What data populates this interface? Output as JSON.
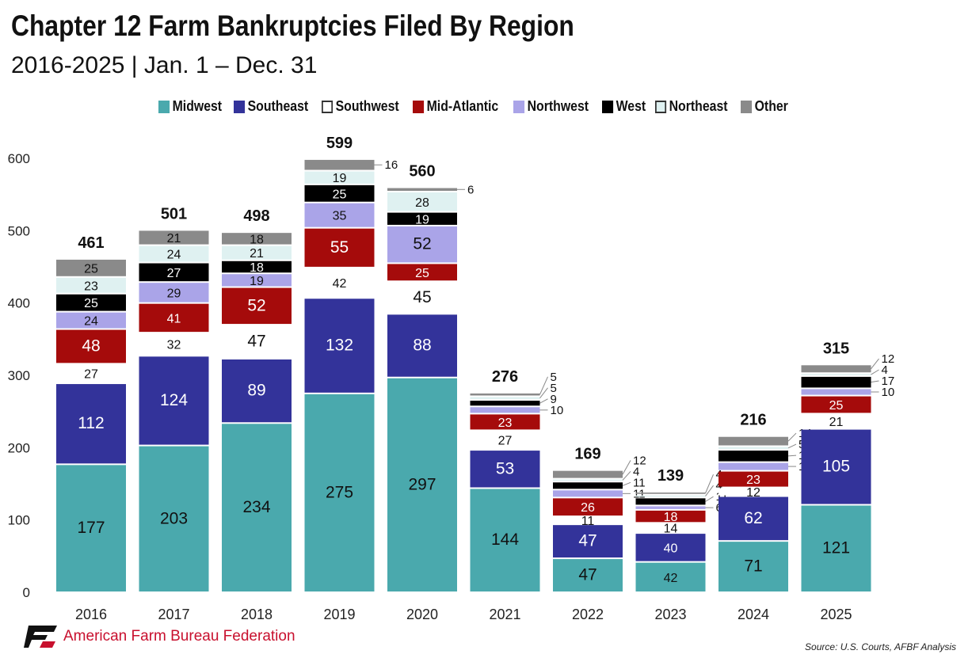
{
  "chart_data": {
    "type": "bar",
    "stacked": true,
    "title": "Chapter 12 Farm Bankruptcies Filed By Region",
    "subtitle": "2016-2025 | Jan. 1 – Dec. 31",
    "categories": [
      "2016",
      "2017",
      "2018",
      "2019",
      "2020",
      "2021",
      "2022",
      "2023",
      "2024",
      "2025"
    ],
    "totals": [
      461,
      501,
      498,
      599,
      560,
      276,
      169,
      139,
      216,
      315
    ],
    "series": [
      {
        "name": "Midwest",
        "color": "#4aa9ad",
        "label_color": "#111",
        "values": [
          177,
          203,
          234,
          275,
          297,
          144,
          47,
          42,
          71,
          121
        ]
      },
      {
        "name": "Southeast",
        "color": "#33339a",
        "label_color": "#fff",
        "values": [
          112,
          124,
          89,
          132,
          88,
          53,
          47,
          40,
          62,
          105
        ]
      },
      {
        "name": "Southwest",
        "color": "#ffffff",
        "label_color": "#111",
        "values": [
          27,
          32,
          47,
          42,
          45,
          27,
          11,
          14,
          12,
          21
        ]
      },
      {
        "name": "Mid-Atlantic",
        "color": "#a50b0b",
        "label_color": "#fff",
        "values": [
          48,
          41,
          52,
          55,
          25,
          23,
          26,
          18,
          23,
          25
        ]
      },
      {
        "name": "Northwest",
        "color": "#aaa4e8",
        "label_color": "#111",
        "values": [
          24,
          29,
          19,
          35,
          52,
          10,
          11,
          6,
          12,
          10
        ]
      },
      {
        "name": "West",
        "color": "#000000",
        "label_color": "#fff",
        "values": [
          25,
          27,
          18,
          25,
          19,
          9,
          11,
          11,
          17,
          17
        ]
      },
      {
        "name": "Northeast",
        "color": "#dff1f1",
        "label_color": "#111",
        "values": [
          23,
          24,
          21,
          19,
          28,
          5,
          4,
          4,
          5,
          4
        ]
      },
      {
        "name": "Other",
        "color": "#8a8a8a",
        "label_color": "#111",
        "values": [
          25,
          21,
          18,
          16,
          6,
          5,
          12,
          4,
          14,
          12
        ]
      }
    ],
    "yticks": [
      0,
      100,
      200,
      300,
      400,
      500,
      600
    ],
    "ylim": [
      0,
      600
    ],
    "legend": "top",
    "grid": false
  },
  "footer": {
    "org": "American Farm Bureau Federation",
    "source": "Source: U.S. Courts, AFBF Analysis"
  }
}
